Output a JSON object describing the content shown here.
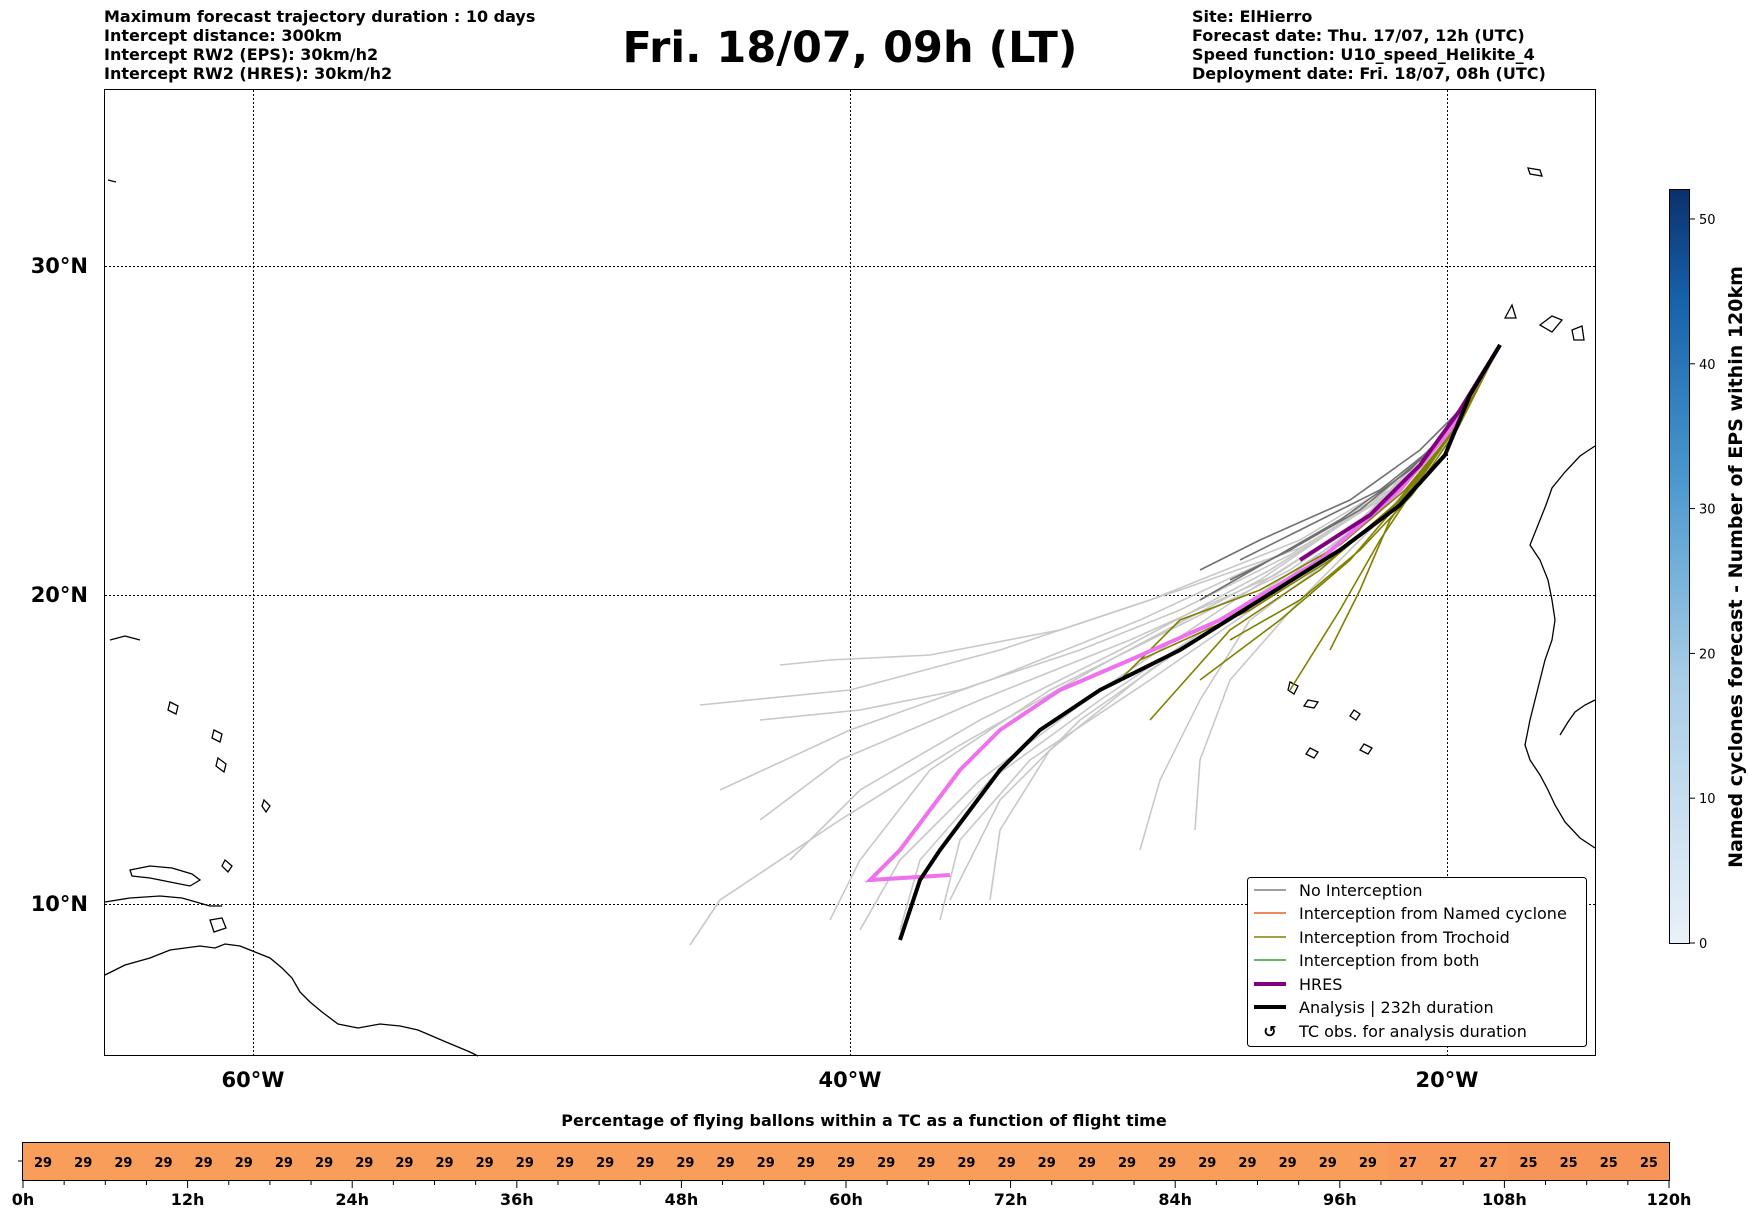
{
  "header": {
    "left_lines": [
      "Maximum forecast trajectory duration : 10 days",
      "Intercept distance: 300km",
      "Intercept RW2 (EPS):  30km/h2",
      "Intercept RW2 (HRES): 30km/h2"
    ],
    "title": "Fri. 18/07, 09h (LT)",
    "right_lines": [
      "Site: ElHierro",
      "Forecast date: Thu. 17/07, 12h (UTC)",
      "Speed function: U10_speed_Helikite_4",
      "Deployment date: Fri. 18/07, 08h (UTC)"
    ]
  },
  "map": {
    "lat_labels": [
      "30°N",
      "20°N",
      "10°N"
    ],
    "lon_labels": [
      "60°W",
      "40°W",
      "20°W"
    ],
    "legend": [
      {
        "label": "No Interception",
        "color": "#808080"
      },
      {
        "label": "Interception from Named cyclone",
        "color": "#e8602c"
      },
      {
        "label": "Interception from Trochoid",
        "color": "#808000"
      },
      {
        "label": "Interception from both",
        "color": "#2ca02c"
      },
      {
        "label": "HRES",
        "color": "#800080"
      },
      {
        "label": "Analysis | 232h duration",
        "color": "#000000"
      },
      {
        "label": "TC obs. for analysis duration",
        "color": "#000000",
        "symbol": "↺"
      }
    ]
  },
  "colorbar": {
    "label": "Named cyclones forecast - Number of EPS within 120km",
    "ticks": [
      "0",
      "10",
      "20",
      "30",
      "40",
      "50"
    ],
    "min": 0,
    "max": 52
  },
  "bottom_bar": {
    "title": "Percentage of flying ballons within a TC as a function of flight time",
    "values": [
      29,
      29,
      29,
      29,
      29,
      29,
      29,
      29,
      29,
      29,
      29,
      29,
      29,
      29,
      29,
      29,
      29,
      29,
      29,
      29,
      29,
      29,
      29,
      29,
      29,
      29,
      29,
      29,
      29,
      29,
      29,
      29,
      29,
      29,
      27,
      27,
      27,
      25,
      25,
      25,
      25
    ],
    "time_labels": [
      "0h",
      "12h",
      "24h",
      "36h",
      "48h",
      "60h",
      "72h",
      "84h",
      "96h",
      "108h",
      "120h"
    ]
  }
}
